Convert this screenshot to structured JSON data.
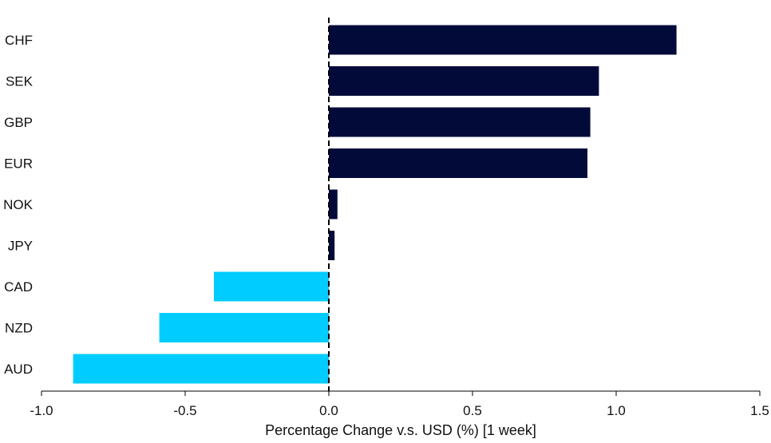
{
  "chart_data": {
    "type": "bar",
    "orientation": "horizontal",
    "categories": [
      "CHF",
      "SEK",
      "GBP",
      "EUR",
      "NOK",
      "JPY",
      "CAD",
      "NZD",
      "AUD"
    ],
    "values": [
      1.21,
      0.94,
      0.91,
      0.9,
      0.03,
      0.02,
      -0.4,
      -0.59,
      -0.89
    ],
    "xlabel": "Percentage Change v.s. USD (%) [1 week]",
    "ylabel": "",
    "title": "",
    "xlim": [
      -1.0,
      1.5
    ],
    "xticks": [
      "-1.0",
      "-0.5",
      "0.0",
      "0.5",
      "1.0",
      "1.5"
    ],
    "colors": {
      "positive": "#020a3a",
      "negative": "#00ccff",
      "zero_line": "#000000"
    },
    "grid": false,
    "legend": "none"
  }
}
